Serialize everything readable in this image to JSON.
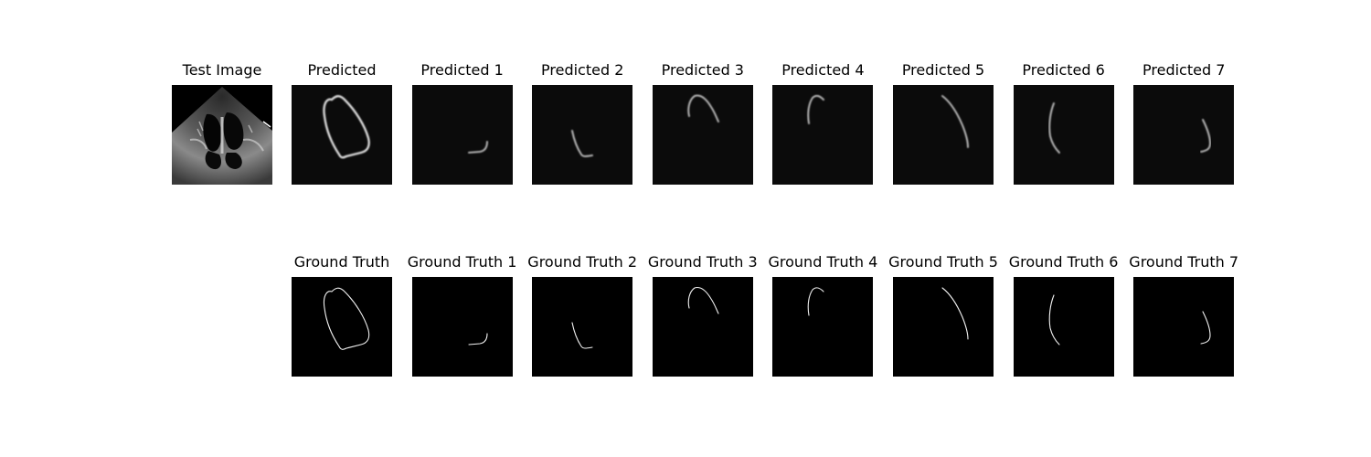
{
  "figure": {
    "test_image": {
      "title": "Test Image",
      "kind": "echocardiogram"
    },
    "predicted": [
      {
        "title": "Predicted",
        "region": "full"
      },
      {
        "title": "Predicted 1",
        "region": 1
      },
      {
        "title": "Predicted 2",
        "region": 2
      },
      {
        "title": "Predicted 3",
        "region": 3
      },
      {
        "title": "Predicted 4",
        "region": 4
      },
      {
        "title": "Predicted 5",
        "region": 5
      },
      {
        "title": "Predicted 6",
        "region": 6
      },
      {
        "title": "Predicted 7",
        "region": 7
      }
    ],
    "ground_truth": [
      {
        "title": "Ground Truth",
        "region": "full"
      },
      {
        "title": "Ground Truth 1",
        "region": 1
      },
      {
        "title": "Ground Truth 2",
        "region": 2
      },
      {
        "title": "Ground Truth 3",
        "region": 3
      },
      {
        "title": "Ground Truth 4",
        "region": 4
      },
      {
        "title": "Ground Truth 5",
        "region": 5
      },
      {
        "title": "Ground Truth 6",
        "region": 6
      },
      {
        "title": "Ground Truth 7",
        "region": 7
      }
    ],
    "colors": {
      "panel_background": "#0b0b0b",
      "contour": "#ffffff"
    }
  }
}
